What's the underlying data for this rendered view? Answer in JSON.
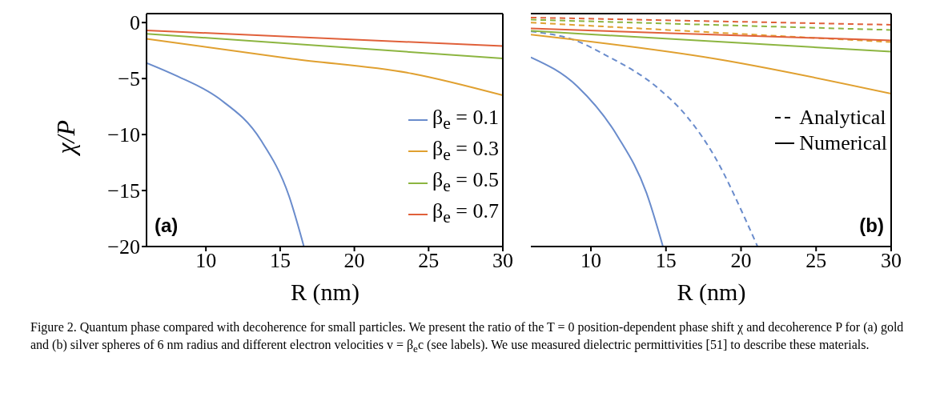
{
  "chart_data": [
    {
      "type": "line",
      "xlabel": "R (nm)",
      "ylabel": "χ/P",
      "xlim": [
        6,
        30
      ],
      "xticks": [
        10,
        15,
        20,
        25,
        30
      ],
      "ylim": [
        -20,
        0.8
      ],
      "yticks": [
        0,
        -5,
        -10,
        -15,
        -20
      ],
      "legend": "right",
      "grid": false,
      "line_style": "solid",
      "series": [
        {
          "name": "β$_{e}$ = 0.1",
          "color": "#6a8ccc",
          "x": [
            6,
            8.1,
            10.9,
            13.7,
            15.6,
            16.6
          ],
          "values": [
            -3.6,
            -4.8,
            -6.8,
            -10.5,
            -15.5,
            -20
          ]
        },
        {
          "name": "β$_{e}$ = 0.3",
          "color": "#e0a030",
          "x": [
            6,
            15.8,
            23.9,
            30
          ],
          "values": [
            -1.45,
            -3.24,
            -4.56,
            -6.5
          ]
        },
        {
          "name": "β$_{e}$ = 0.5",
          "color": "#8cb540",
          "x": [
            6,
            30
          ],
          "values": [
            -1.0,
            -3.2
          ]
        },
        {
          "name": "β$_{e}$ = 0.7",
          "color": "#e0603a",
          "x": [
            6,
            30
          ],
          "values": [
            -0.7,
            -2.1
          ]
        }
      ],
      "annotations": [
        "(a)",
        "Figure 2.  Quantum phase compared with decoherence for small particles. We present the ratio of the T = 0 position-dependent phase shift χ and decoherence P for (a) gold and (b) silver spheres of 6 nm radius and different electron velocities v = β$_{e}$c (see labels). We use measured dielectric permittivities [51] to describe these materials."
      ]
    },
    {
      "type": "line",
      "xlabel": "R (nm)",
      "xlim": [
        6,
        30
      ],
      "xticks": [
        10,
        15,
        20,
        25,
        30
      ],
      "ylim": [
        -20,
        0.8
      ],
      "yticks": [
        0,
        -5,
        -10,
        -15,
        -20
      ],
      "tick_labels": "x",
      "legend": "right",
      "grid": false,
      "series": [
        {
          "color": "#6a8ccc",
          "line_style": "dashed",
          "x": [
            6,
            9.1,
            10.9,
            14.6,
            16.4,
            18.3,
            20.2,
            21.1
          ],
          "values": [
            -0.79,
            -1.66,
            -2.85,
            -6.0,
            -8.4,
            -12.1,
            -17.3,
            -20
          ]
        },
        {
          "color": "#e0a030",
          "line_style": "dashed",
          "x": [
            6,
            30
          ],
          "values": [
            0,
            -1.74
          ]
        },
        {
          "color": "#8cb540",
          "line_style": "dashed",
          "x": [
            6,
            30
          ],
          "values": [
            0.26,
            -0.66
          ]
        },
        {
          "color": "#e0603a",
          "line_style": "dashed",
          "x": [
            6,
            30
          ],
          "values": [
            0.45,
            -0.2
          ]
        },
        {
          "color": "#6a8ccc",
          "line_style": "solid",
          "x": [
            6,
            9.1,
            11.8,
            13.7,
            14.8
          ],
          "values": [
            -3.1,
            -5.7,
            -10.2,
            -15.2,
            -20
          ]
        },
        {
          "color": "#e0a030",
          "line_style": "solid",
          "x": [
            6,
            18.3,
            30
          ],
          "values": [
            -1.08,
            -3.24,
            -6.35
          ]
        },
        {
          "color": "#8cb540",
          "line_style": "solid",
          "x": [
            6,
            30
          ],
          "values": [
            -0.74,
            -2.6
          ]
        },
        {
          "color": "#e0603a",
          "line_style": "solid",
          "x": [
            6,
            30
          ],
          "values": [
            -0.53,
            -1.6
          ]
        },
        {
          "name": "Analytical",
          "color": "#000000",
          "line_style": "dashed"
        },
        {
          "name": "Numerical",
          "color": "#000000",
          "line_style": "solid"
        }
      ],
      "annotations": [
        "(b)"
      ]
    }
  ]
}
